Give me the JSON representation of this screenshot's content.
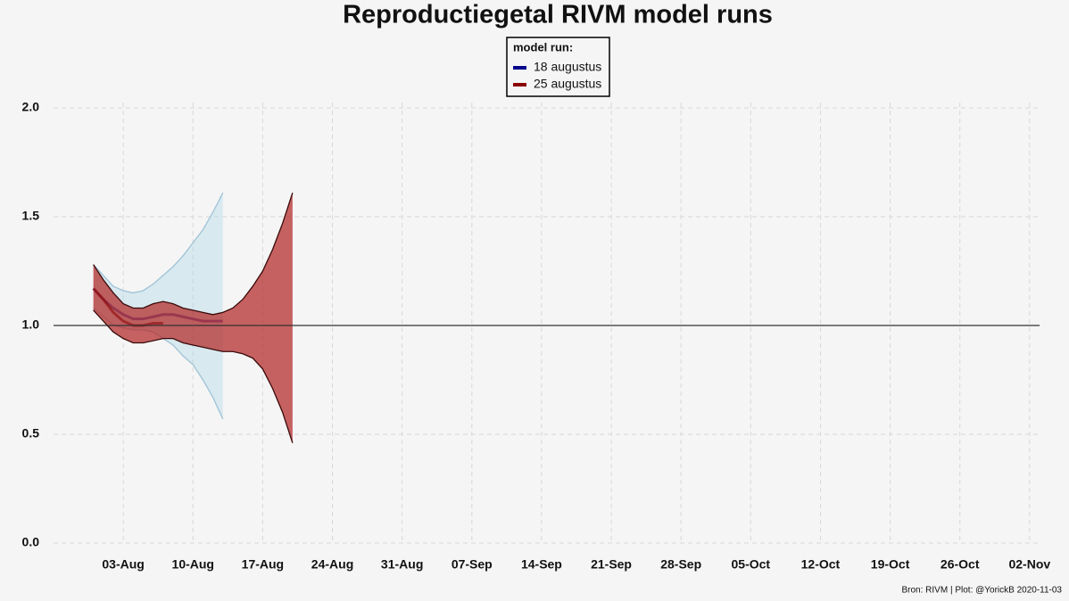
{
  "chart_data": {
    "type": "line",
    "title": "Reproductiegetal RIVM model runs",
    "legend_title": "model run:",
    "legend_position": "top",
    "caption": "Bron: RIVM | Plot: @YorickB  2020-11-03",
    "x": [
      "31-Jul",
      "01-Aug",
      "02-Aug",
      "03-Aug",
      "04-Aug",
      "05-Aug",
      "06-Aug",
      "07-Aug",
      "08-Aug",
      "09-Aug",
      "10-Aug",
      "11-Aug",
      "12-Aug",
      "13-Aug",
      "14-Aug",
      "15-Aug",
      "16-Aug",
      "17-Aug",
      "18-Aug",
      "19-Aug",
      "20-Aug"
    ],
    "series": [
      {
        "name": "18 augustus",
        "color": "#00008b",
        "band_color": "#add8e6",
        "values": [
          1.17,
          1.12,
          1.08,
          1.05,
          1.03,
          1.03,
          1.04,
          1.05,
          1.05,
          1.04,
          1.03,
          1.02,
          1.02,
          1.02,
          null,
          null,
          null,
          null,
          null,
          null,
          null
        ],
        "lower": [
          1.08,
          1.04,
          1.0,
          0.99,
          0.98,
          0.98,
          0.97,
          0.94,
          0.91,
          0.86,
          0.82,
          0.75,
          0.67,
          0.57,
          null,
          null,
          null,
          null,
          null,
          null,
          null
        ],
        "upper": [
          1.28,
          1.23,
          1.18,
          1.16,
          1.15,
          1.16,
          1.19,
          1.23,
          1.27,
          1.32,
          1.38,
          1.44,
          1.52,
          1.61,
          null,
          null,
          null,
          null,
          null,
          null,
          null
        ]
      },
      {
        "name": "25 augustus",
        "color": "#8b0000",
        "band_color": "#b22222",
        "values": [
          1.17,
          1.12,
          1.06,
          1.02,
          1.0,
          1.0,
          1.01,
          1.01,
          null,
          null,
          null,
          null,
          null,
          null,
          null,
          null,
          null,
          null,
          null,
          null,
          null
        ],
        "lower": [
          1.07,
          1.02,
          0.97,
          0.94,
          0.92,
          0.92,
          0.93,
          0.94,
          0.94,
          0.92,
          0.91,
          0.9,
          0.89,
          0.88,
          0.88,
          0.87,
          0.85,
          0.8,
          0.71,
          0.6,
          0.46
        ],
        "upper": [
          1.28,
          1.21,
          1.15,
          1.1,
          1.08,
          1.08,
          1.1,
          1.11,
          1.1,
          1.08,
          1.07,
          1.06,
          1.05,
          1.06,
          1.08,
          1.12,
          1.18,
          1.25,
          1.35,
          1.47,
          1.61
        ]
      }
    ],
    "hline": 1,
    "xlim": [
      "27-Jul",
      "03-Nov"
    ],
    "xticks": [
      "03-Aug",
      "10-Aug",
      "17-Aug",
      "24-Aug",
      "31-Aug",
      "07-Sep",
      "14-Sep",
      "21-Sep",
      "28-Sep",
      "05-Oct",
      "12-Oct",
      "19-Oct",
      "26-Oct",
      "02-Nov"
    ],
    "ylim": [
      0,
      2
    ],
    "yticks": [
      {
        "value": 0,
        "label": "0.0"
      },
      {
        "value": 0.5,
        "label": "0.5"
      },
      {
        "value": 1,
        "label": "1.0"
      },
      {
        "value": 1.5,
        "label": "1.5"
      },
      {
        "value": 2,
        "label": "2.0"
      }
    ],
    "grid": true
  }
}
